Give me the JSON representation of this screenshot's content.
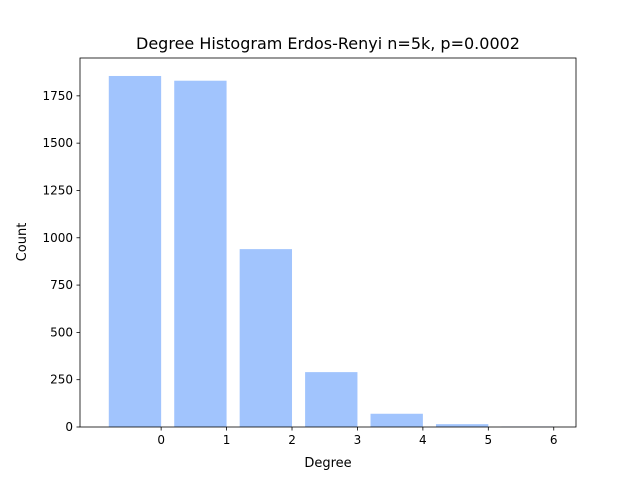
{
  "chart_data": {
    "type": "bar",
    "title": "Degree Histogram Erdos-Renyi n=5k, p=0.0002",
    "xlabel": "Degree",
    "ylabel": "Count",
    "bar_left_edges": [
      -0.8,
      0.2,
      1.2,
      2.2,
      3.2,
      4.2,
      5.2
    ],
    "bar_width": 0.8,
    "values": [
      1855,
      1830,
      940,
      290,
      70,
      15,
      2
    ],
    "xlim": [
      -1.24,
      6.34
    ],
    "ylim": [
      0,
      1950
    ],
    "xticks": [
      0,
      1,
      2,
      3,
      4,
      5,
      6
    ],
    "yticks": [
      0,
      250,
      500,
      750,
      1000,
      1250,
      1500,
      1750
    ],
    "bar_color": "#a1c4fd",
    "grid": false,
    "legend": "none"
  }
}
